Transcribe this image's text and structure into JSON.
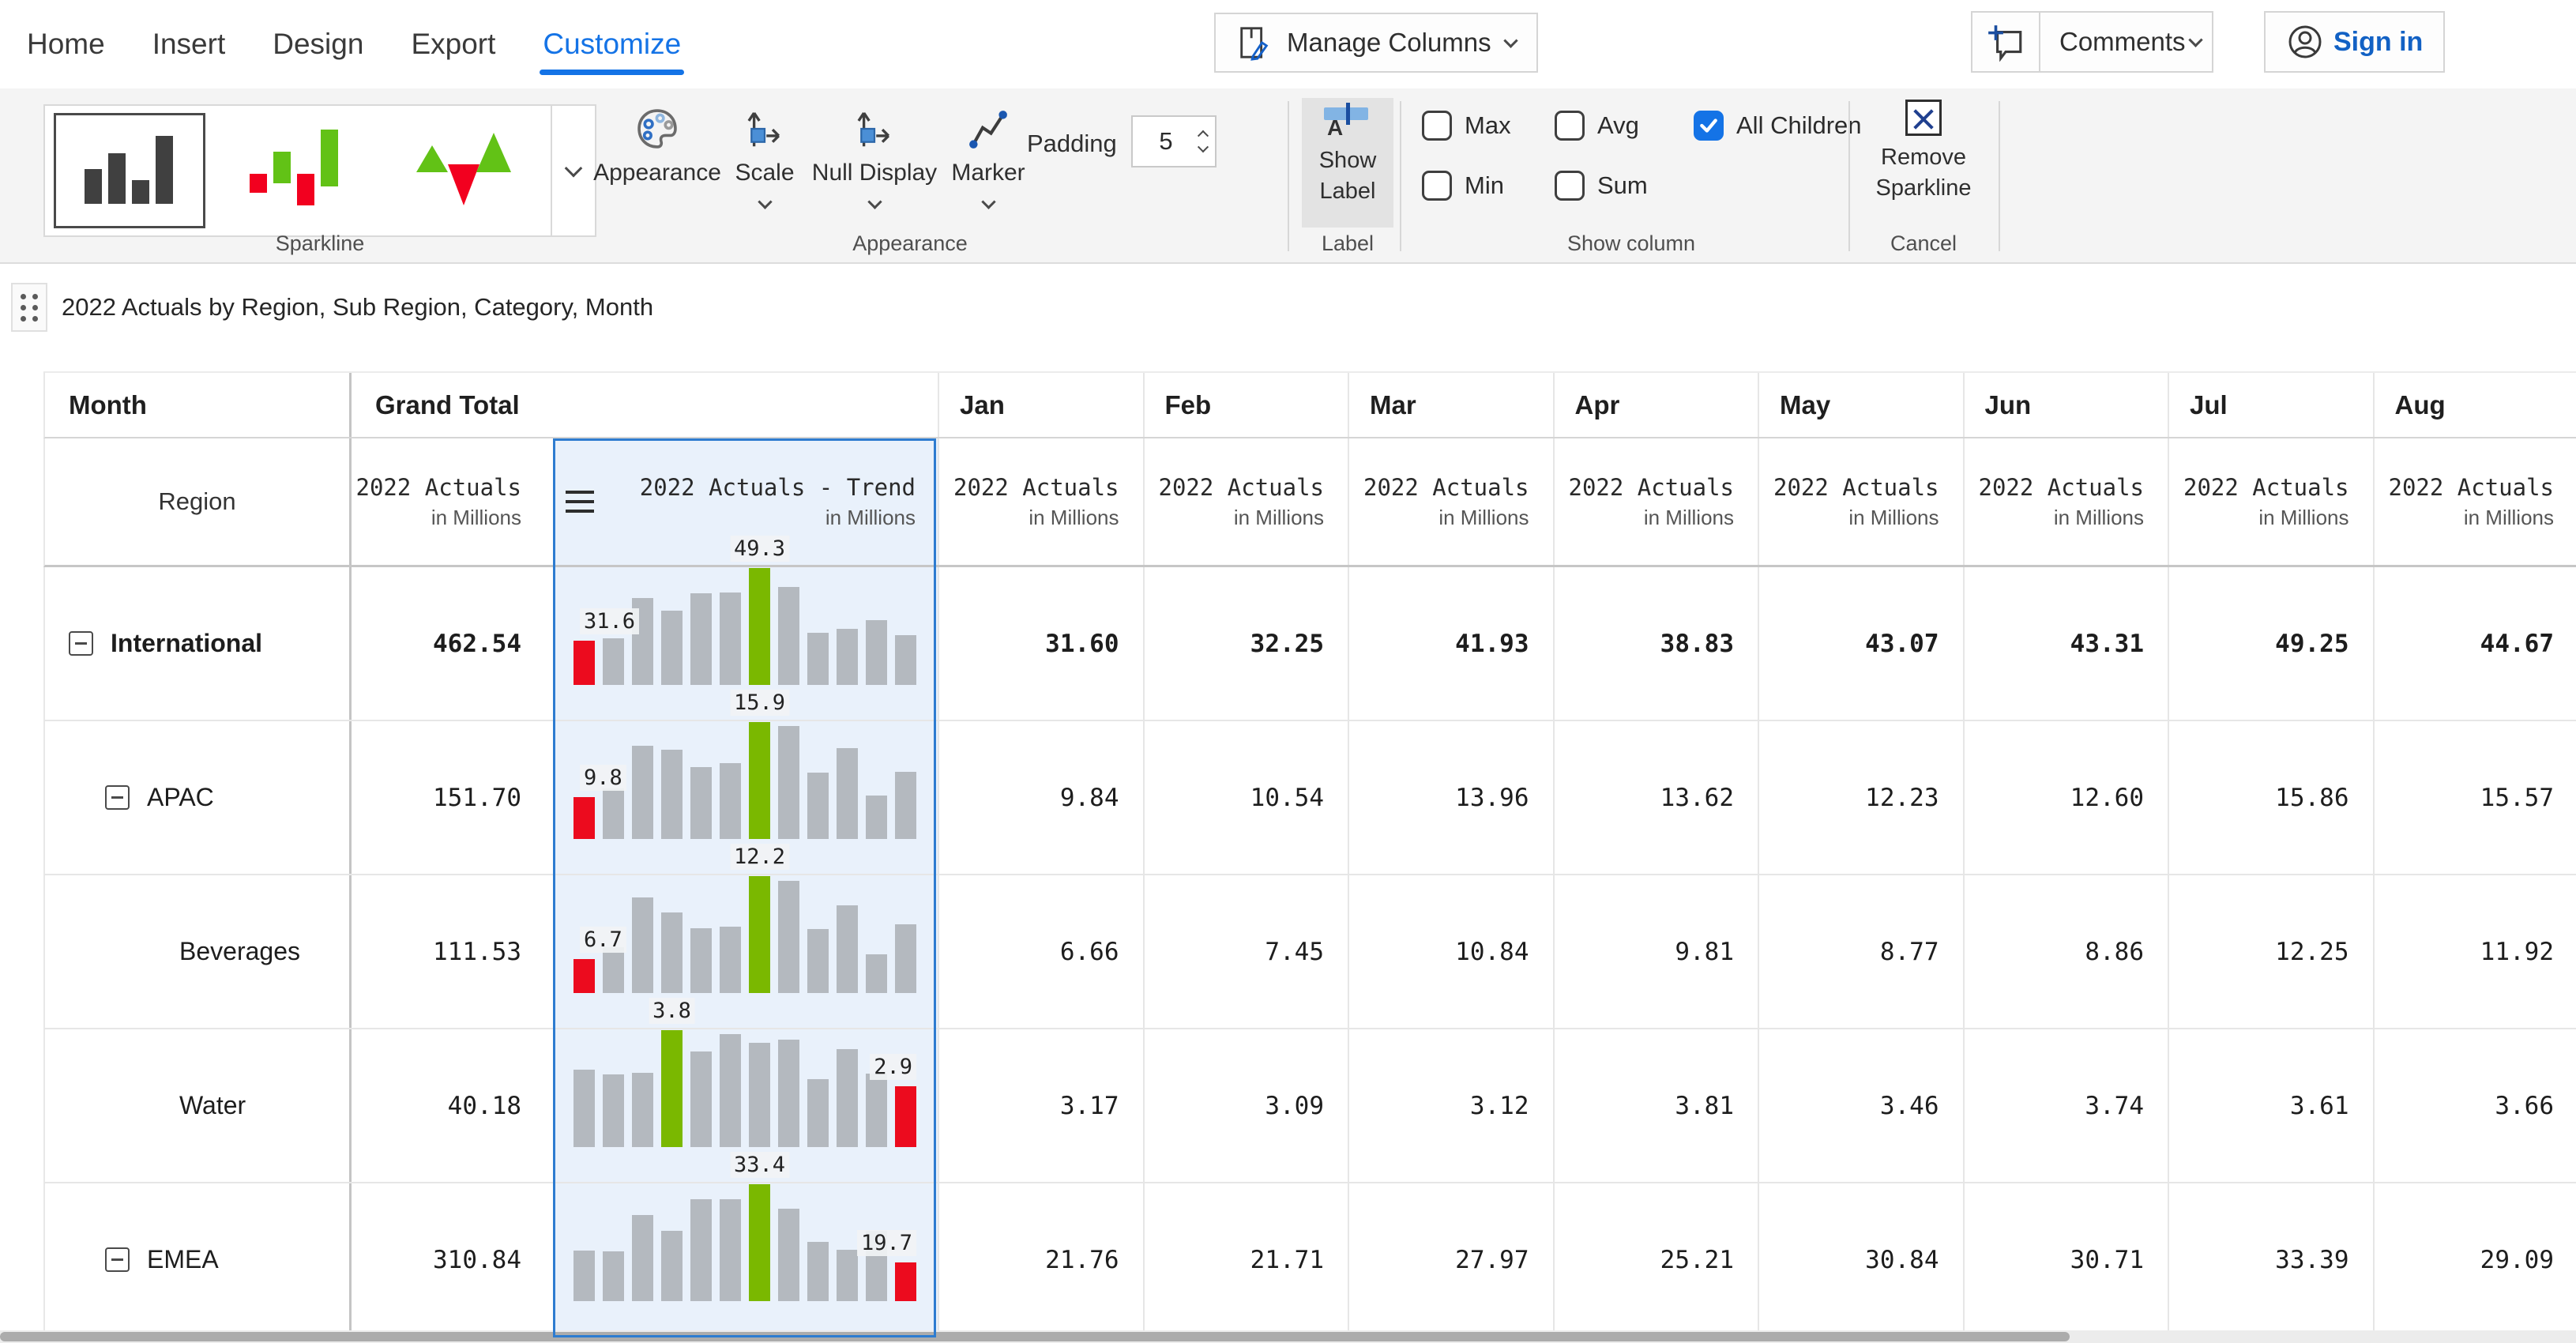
{
  "accent_color": "#1473e6",
  "sparkline_colors": {
    "bar": "#b4b9bf",
    "max": "#7ab800",
    "min": "#ec0b1e",
    "selection_border": "#2e7cd0",
    "selection_fill": "#e9f1fb"
  },
  "ribbon": {
    "tabs": [
      {
        "label": "Home",
        "active": false
      },
      {
        "label": "Insert",
        "active": false
      },
      {
        "label": "Design",
        "active": false
      },
      {
        "label": "Export",
        "active": false
      },
      {
        "label": "Customize",
        "active": true
      }
    ],
    "manage_columns_label": "Manage Columns",
    "comments_label": "Comments",
    "sign_in_label": "Sign in",
    "sparkline_group": {
      "group_label": "Sparkline",
      "styles": [
        "column-sparkline",
        "variance-sparkline",
        "arrow-sparkline"
      ],
      "selected_style": 0
    },
    "appearance_group": {
      "items": [
        {
          "label": "Appearance",
          "has_dropdown": false
        },
        {
          "label": "Scale",
          "has_dropdown": true
        },
        {
          "label": "Null Display",
          "has_dropdown": true
        },
        {
          "label": "Marker",
          "has_dropdown": true
        }
      ],
      "padding_label": "Padding",
      "padding_value": "5",
      "group_label": "Appearance"
    },
    "label_group": {
      "button_label": "Show Label",
      "group_label": "Label",
      "pressed": true
    },
    "show_column_group": {
      "checkboxes": [
        {
          "label": "Max",
          "checked": false
        },
        {
          "label": "Avg",
          "checked": false
        },
        {
          "label": "All Children",
          "checked": true
        },
        {
          "label": "Min",
          "checked": false
        },
        {
          "label": "Sum",
          "checked": false
        }
      ],
      "group_label": "Show column"
    },
    "cancel_group": {
      "button_label": "Remove Sparkline",
      "group_label": "Cancel"
    }
  },
  "title": "2022 Actuals by Region, Sub Region, Category, Month",
  "table": {
    "corner_top": "Month",
    "corner_bottom": "Region",
    "grand_total_label": "Grand Total",
    "months": [
      "Jan",
      "Feb",
      "Mar",
      "Apr",
      "May",
      "Jun",
      "Jul",
      "Aug"
    ],
    "measure_label": "2022 Actuals",
    "measure_unit": "in Millions",
    "trend_label": "2022 Actuals - Trend",
    "rows": [
      {
        "label": "International",
        "level": 0,
        "collapsible": true,
        "bold": true,
        "total": "462.54",
        "monthly": [
          "31.60",
          "32.25",
          "41.93",
          "38.83",
          "43.07",
          "43.31",
          "49.25",
          "44.67"
        ],
        "sparkline": {
          "type": "bar",
          "values": [
            31.6,
            32.25,
            41.93,
            38.83,
            43.07,
            43.31,
            49.25,
            44.67,
            33.5,
            34.5,
            36.6,
            33.0
          ],
          "min_index": 0,
          "max_index": 6,
          "min_label": "31.6",
          "max_label": "49.3"
        }
      },
      {
        "label": "APAC",
        "level": 1,
        "collapsible": true,
        "bold": false,
        "total": "151.70",
        "monthly": [
          "9.84",
          "10.54",
          "13.96",
          "13.62",
          "12.23",
          "12.60",
          "15.86",
          "15.57"
        ],
        "sparkline": {
          "type": "bar",
          "values": [
            9.84,
            10.54,
            13.96,
            13.62,
            12.23,
            12.6,
            15.86,
            15.57,
            11.8,
            13.8,
            10.0,
            11.88
          ],
          "min_index": 0,
          "max_index": 6,
          "min_label": "9.8",
          "max_label": "15.9"
        }
      },
      {
        "label": "Beverages",
        "level": 2,
        "collapsible": false,
        "bold": false,
        "total": "111.53",
        "monthly": [
          "6.66",
          "7.45",
          "10.84",
          "9.81",
          "8.77",
          "8.86",
          "12.25",
          "11.92"
        ],
        "sparkline": {
          "type": "bar",
          "values": [
            6.66,
            7.45,
            10.84,
            9.81,
            8.77,
            8.86,
            12.25,
            11.92,
            8.7,
            10.3,
            6.97,
            9.0
          ],
          "min_index": 0,
          "max_index": 6,
          "min_label": "6.7",
          "max_label": "12.2"
        }
      },
      {
        "label": "Water",
        "level": 2,
        "collapsible": false,
        "bold": false,
        "total": "40.18",
        "monthly": [
          "3.17",
          "3.09",
          "3.12",
          "3.81",
          "3.46",
          "3.74",
          "3.61",
          "3.66"
        ],
        "sparkline": {
          "type": "bar",
          "values": [
            3.17,
            3.09,
            3.12,
            3.81,
            3.46,
            3.74,
            3.61,
            3.66,
            3.02,
            3.5,
            3.1,
            2.9
          ],
          "min_index": 11,
          "max_index": 3,
          "min_label": "2.9",
          "max_label": "3.8"
        }
      },
      {
        "label": "EMEA",
        "level": 1,
        "collapsible": true,
        "bold": false,
        "total": "310.84",
        "monthly": [
          "21.76",
          "21.71",
          "27.97",
          "25.21",
          "30.84",
          "30.71",
          "33.39",
          "29.09"
        ],
        "sparkline": {
          "type": "bar",
          "values": [
            21.76,
            21.71,
            27.97,
            25.21,
            30.84,
            30.71,
            33.39,
            29.09,
            23.3,
            21.9,
            25.26,
            19.7
          ],
          "min_index": 11,
          "max_index": 6,
          "min_label": "19.7",
          "max_label": "33.4"
        }
      }
    ]
  }
}
